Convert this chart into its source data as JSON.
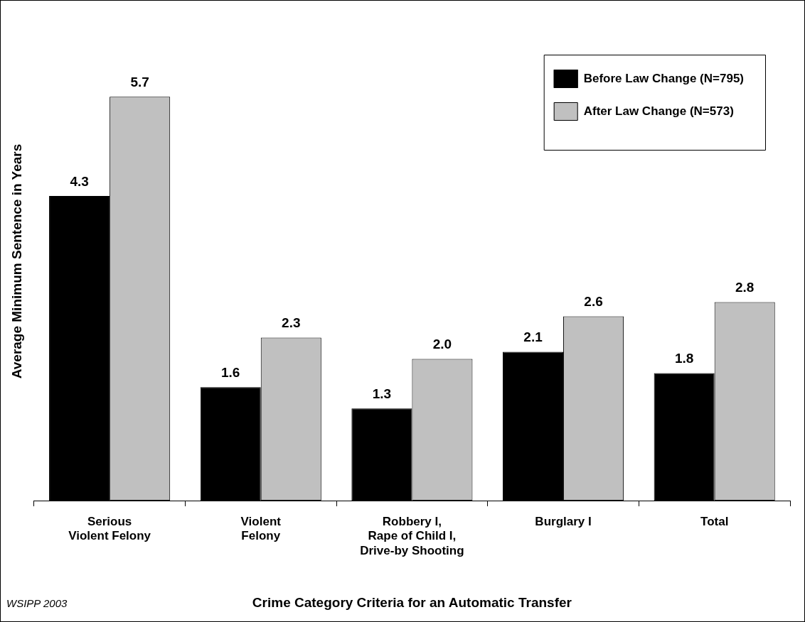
{
  "chart_data": {
    "type": "bar",
    "xlabel": "Crime Category Criteria for an Automatic Transfer",
    "ylabel": "Average Minimum Sentence in Years",
    "categories": [
      "Serious\nViolent Felony",
      "Violent\nFelony",
      "Robbery I,\nRape of Child I,\nDrive-by Shooting",
      "Burglary I",
      "Total"
    ],
    "series": [
      {
        "name": "Before Law Change (N=795)",
        "color": "#000000",
        "values": [
          4.3,
          1.6,
          1.3,
          2.1,
          1.8
        ],
        "value_labels": [
          "4.3",
          "1.6",
          "1.3",
          "2.1",
          "1.8"
        ]
      },
      {
        "name": "After Law Change (N=573)",
        "color": "#c0c0c0",
        "values": [
          5.7,
          2.3,
          2.0,
          2.6,
          2.8
        ],
        "value_labels": [
          "5.7",
          "2.3",
          "2.0",
          "2.6",
          "2.8"
        ]
      }
    ],
    "legend": "top right",
    "grid": false,
    "annotations": [
      "WSIPP 2003"
    ]
  }
}
